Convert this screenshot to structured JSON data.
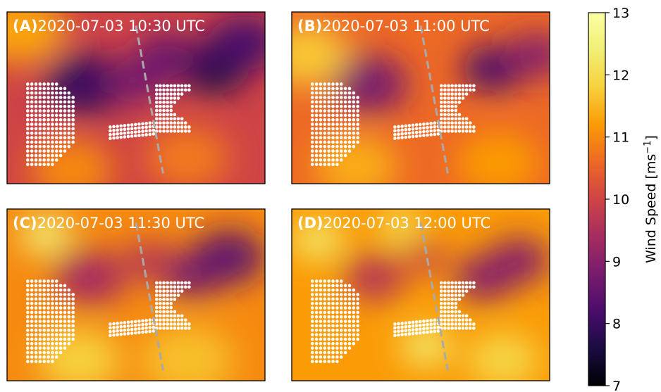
{
  "chart_data": {
    "type": "heatmap",
    "colorbar": {
      "label": "Wind Speed [ms",
      "label_superscript": "−1",
      "label_suffix": "]",
      "range": [
        7,
        13
      ],
      "ticks": [
        "7",
        "8",
        "9",
        "10",
        "11",
        "12",
        "13"
      ],
      "colormap": "inferno"
    },
    "panels": [
      {
        "tag": "(A)",
        "time": "2020-07-03 10:30 UTC",
        "background_speed": 10.0,
        "blobs": [
          {
            "x": 0.3,
            "y": 0.42,
            "r": 0.16,
            "v": 8.0
          },
          {
            "x": 0.5,
            "y": 0.4,
            "r": 0.12,
            "v": 8.8
          },
          {
            "x": 0.8,
            "y": 0.32,
            "r": 0.14,
            "v": 7.7
          },
          {
            "x": 0.92,
            "y": 0.18,
            "r": 0.14,
            "v": 8.2
          },
          {
            "x": 0.62,
            "y": 0.26,
            "r": 0.12,
            "v": 8.6
          },
          {
            "x": 0.05,
            "y": 0.1,
            "r": 0.18,
            "v": 11.3
          },
          {
            "x": 0.25,
            "y": 0.92,
            "r": 0.16,
            "v": 11.0
          },
          {
            "x": 0.7,
            "y": 0.85,
            "r": 0.16,
            "v": 10.8
          }
        ]
      },
      {
        "tag": "(B)",
        "time": "2020-07-03 11:00 UTC",
        "background_speed": 10.6,
        "blobs": [
          {
            "x": 0.3,
            "y": 0.42,
            "r": 0.15,
            "v": 8.8
          },
          {
            "x": 0.78,
            "y": 0.33,
            "r": 0.12,
            "v": 8.2
          },
          {
            "x": 0.95,
            "y": 0.25,
            "r": 0.12,
            "v": 9.0
          },
          {
            "x": 0.06,
            "y": 0.25,
            "r": 0.16,
            "v": 11.7
          },
          {
            "x": 0.25,
            "y": 0.9,
            "r": 0.16,
            "v": 11.4
          },
          {
            "x": 0.8,
            "y": 0.88,
            "r": 0.16,
            "v": 11.2
          }
        ]
      },
      {
        "tag": "(C)",
        "time": "2020-07-03 11:30 UTC",
        "background_speed": 11.0,
        "blobs": [
          {
            "x": 0.32,
            "y": 0.4,
            "r": 0.14,
            "v": 9.4
          },
          {
            "x": 0.72,
            "y": 0.38,
            "r": 0.12,
            "v": 8.8
          },
          {
            "x": 0.86,
            "y": 0.28,
            "r": 0.14,
            "v": 8.5
          },
          {
            "x": 0.55,
            "y": 0.3,
            "r": 0.1,
            "v": 9.6
          },
          {
            "x": 0.15,
            "y": 0.15,
            "r": 0.1,
            "v": 12.4
          },
          {
            "x": 0.28,
            "y": 0.88,
            "r": 0.16,
            "v": 11.8
          },
          {
            "x": 0.7,
            "y": 0.88,
            "r": 0.18,
            "v": 11.6
          }
        ]
      },
      {
        "tag": "(D)",
        "time": "2020-07-03 12:00 UTC",
        "background_speed": 11.2,
        "blobs": [
          {
            "x": 0.32,
            "y": 0.4,
            "r": 0.12,
            "v": 9.6
          },
          {
            "x": 0.75,
            "y": 0.4,
            "r": 0.12,
            "v": 9.0
          },
          {
            "x": 0.88,
            "y": 0.3,
            "r": 0.12,
            "v": 9.0
          },
          {
            "x": 0.52,
            "y": 0.28,
            "r": 0.08,
            "v": 9.8
          },
          {
            "x": 0.1,
            "y": 0.18,
            "r": 0.1,
            "v": 12.3
          },
          {
            "x": 0.42,
            "y": 0.1,
            "r": 0.08,
            "v": 12.2
          },
          {
            "x": 0.52,
            "y": 0.8,
            "r": 0.1,
            "v": 12.3
          },
          {
            "x": 0.82,
            "y": 0.88,
            "r": 0.14,
            "v": 11.9
          }
        ]
      }
    ]
  }
}
